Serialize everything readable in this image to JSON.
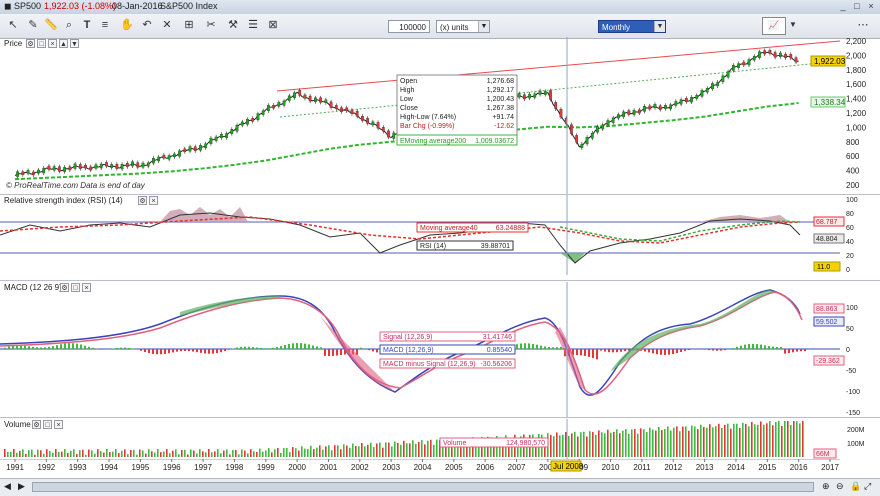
{
  "title_bar": {
    "symbol": "SP500",
    "quote": "1,922.03 (-1.08%)",
    "date": "08-Jan-2016",
    "name": "S&P500 Index"
  },
  "toolbar": {
    "units_value": "100000",
    "units_label": "(x) units",
    "period": "Monthly"
  },
  "icons": [
    "cursor-icon",
    "pencil-icon",
    "ruler-icon",
    "zoom-icon",
    "text-icon",
    "fib-icon",
    "hand-icon",
    "undo-icon",
    "delete-icon",
    "ruler2-icon",
    "scissors-icon",
    "link-icon",
    "lines-icon",
    "grid-icon"
  ],
  "price_panel": {
    "label": "Price",
    "watermark": "© ProRealTime.com  Data is end of day",
    "y_ticks": [
      "2,200",
      "2,000",
      "1,800",
      "1,600",
      "1,400",
      "1,200",
      "1,000",
      "800",
      "600",
      "400",
      "200"
    ],
    "last_price": "1,922.03",
    "ma_value": "1,338.34",
    "tooltip": {
      "rows": [
        {
          "k": "Open",
          "v": "1,276.68"
        },
        {
          "k": "High",
          "v": "1,292.17"
        },
        {
          "k": "Low",
          "v": "1,200.43"
        },
        {
          "k": "Close",
          "v": "1,267.38"
        },
        {
          "k": "High-Low (7.64%)",
          "v": "+91.74"
        },
        {
          "k": "Bar Chg (-0.99%)",
          "v": "-12.62"
        }
      ],
      "ma_label": "EMoving average200",
      "ma_val": "1,009.03672"
    }
  },
  "rsi_panel": {
    "label": "Relative strength index (RSI) (14)",
    "y_ticks": [
      "100",
      "80",
      "60",
      "40",
      "20",
      "0"
    ],
    "ma40_label": "Moving average40",
    "ma40_value": "63.24888",
    "rsi_label": "RSI (14)",
    "rsi_value": "39.88701",
    "badge_upper": "68.787",
    "badge_lower": "48.804",
    "badge_level": "11.0"
  },
  "macd_panel": {
    "label": "MACD (12 26 9)",
    "y_ticks": [
      "100",
      "50",
      "0",
      "-50",
      "-100",
      "-150"
    ],
    "signal_label": "Signal (12,26,9)",
    "signal_value": "31.41746",
    "macd_label": "MACD (12,26,9)",
    "macd_value": "0.85540",
    "hist_label": "MACD minus Signal (12,26,9)",
    "hist_value": "-30.56206",
    "badge1": "88.863",
    "badge2": "59.502",
    "badge3": "-29.362"
  },
  "volume_panel": {
    "label": "Volume",
    "y_ticks": [
      "200M",
      "100M"
    ],
    "vol_label": "Volume",
    "vol_value": "124,980,570",
    "badge": "66M"
  },
  "x_axis": {
    "years": [
      "1991",
      "1992",
      "1993",
      "1994",
      "1995",
      "1996",
      "1997",
      "1998",
      "1999",
      "2000",
      "2001",
      "2002",
      "2003",
      "2004",
      "2005",
      "2006",
      "2007",
      "2008",
      "2009",
      "2010",
      "2011",
      "2012",
      "2013",
      "2014",
      "2015",
      "2016",
      "2017"
    ],
    "cursor_label": "Jul 2008"
  },
  "colors": {
    "up": "#19a819",
    "down": "#e33636",
    "ma_green": "#2fb52f",
    "trend_red": "#e84b4b",
    "rsi_line": "#333333",
    "macd_blue": "#3a46b8",
    "signal_red": "#e06080"
  },
  "chart_data": {
    "type": "line",
    "x": [
      1991,
      1992,
      1993,
      1994,
      1995,
      1996,
      1997,
      1998,
      1999,
      2000,
      2001,
      2002,
      2003,
      2004,
      2005,
      2006,
      2007,
      2008,
      2009,
      2010,
      2011,
      2012,
      2013,
      2014,
      2015,
      2016
    ],
    "series": [
      {
        "name": "SP500",
        "values": [
          330,
          410,
          440,
          460,
          470,
          610,
          740,
          970,
          1230,
          1460,
          1320,
          1150,
          880,
          1110,
          1180,
          1280,
          1420,
          1470,
          740,
          1110,
          1250,
          1300,
          1480,
          1840,
          2050,
          1922
        ]
      },
      {
        "name": "EMoving average200",
        "values": [
          280,
          300,
          320,
          340,
          360,
          390,
          430,
          480,
          540,
          620,
          700,
          760,
          800,
          840,
          880,
          920,
          970,
          1009,
          1000,
          1020,
          1060,
          1100,
          1150,
          1220,
          1290,
          1338
        ]
      }
    ],
    "ylim": [
      180,
      2250
    ]
  }
}
